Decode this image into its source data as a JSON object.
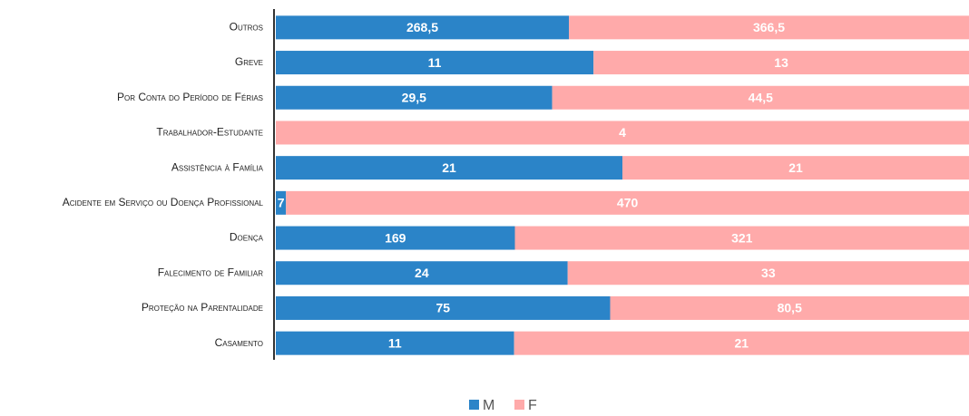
{
  "chart_data": {
    "type": "bar",
    "orientation": "horizontal",
    "stacked": "percent",
    "categories": [
      "Outros",
      "Greve",
      "Por Conta do Período de Férias",
      "Trabalhador-Estudante",
      "Assistência à Família",
      "Acidente em Serviço ou Doença Profissional",
      "Doença",
      "Falecimento de Familiar",
      "Proteção na Parentalidade",
      "Casamento"
    ],
    "series": [
      {
        "name": "M",
        "color": "#2b84c8",
        "values": [
          268.5,
          11,
          29.5,
          null,
          21,
          7,
          169,
          24,
          75,
          11
        ],
        "value_labels": [
          "268,5",
          "11",
          "29,5",
          null,
          "21",
          "7",
          "169",
          "24",
          "75",
          "11"
        ]
      },
      {
        "name": "F",
        "color": "#ffaaaa",
        "values": [
          366.5,
          13,
          44.5,
          4,
          21,
          470,
          321,
          33,
          80.5,
          21
        ],
        "value_labels": [
          "366,5",
          "13",
          "44,5",
          "4",
          "21",
          "470",
          "321",
          "33",
          "80,5",
          "21"
        ]
      }
    ],
    "legend": "bottom"
  }
}
